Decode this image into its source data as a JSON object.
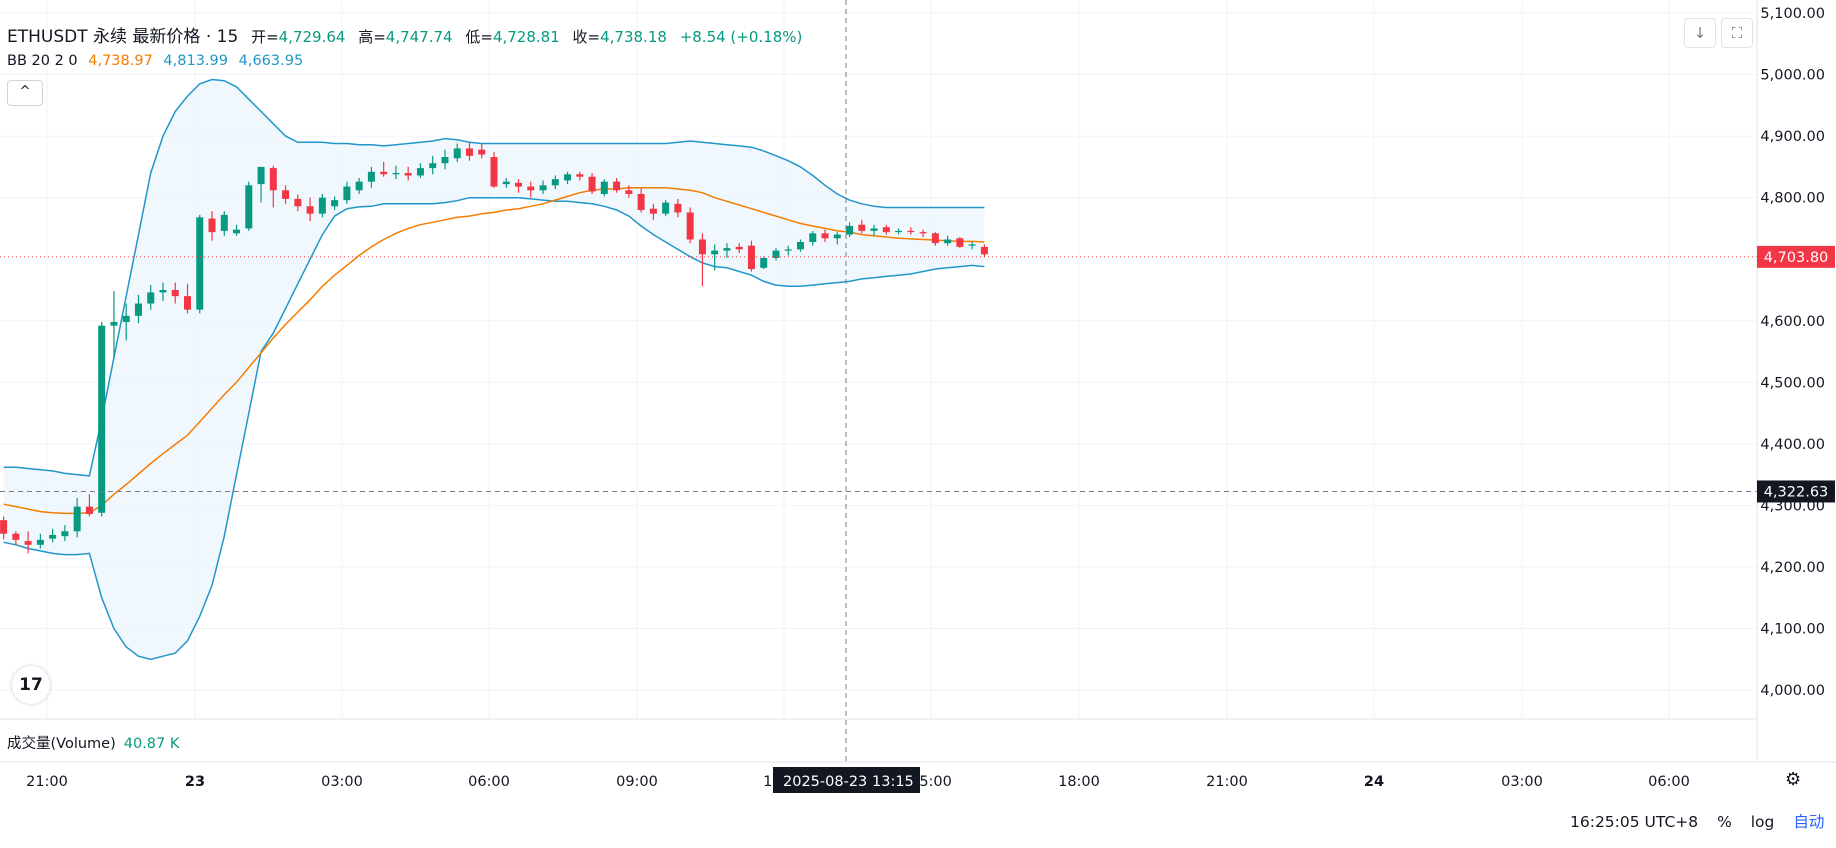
{
  "header": {
    "symbol": "ETHUSDT 永续 最新价格 · 15",
    "open_label": "开=",
    "open": "4,729.64",
    "high_label": "高=",
    "high": "4,747.74",
    "low_label": "低=",
    "low": "4,728.81",
    "close_label": "收=",
    "close": "4,738.18",
    "change": "+8.54 (+0.18%)"
  },
  "bb_legend": {
    "name": "BB 20 2 0",
    "middle": "4,738.97",
    "upper": "4,813.99",
    "lower": "4,663.95"
  },
  "volume_legend": {
    "label": "成交量(Volume)",
    "value": "40.87 K"
  },
  "crosshair": {
    "date": "2025-08-23",
    "time": "13:15",
    "price": "4,322.63"
  },
  "last_price": "4,703.80",
  "bottom_bar": {
    "clock": "16:25:05 UTC+8",
    "percent": "%",
    "log": "log",
    "auto": "自动"
  },
  "logo_text": "17",
  "icons": [
    "collapse-icon",
    "download-icon",
    "fullscreen-icon",
    "settings-icon",
    "tradingview-logo-icon"
  ],
  "colors": {
    "up": "#089981",
    "down": "#f23645",
    "bb_middle": "#f57c00",
    "bb_band": "#2196c8",
    "band_fill": "#e3f2fd"
  },
  "chart_data": {
    "type": "candlestick",
    "title": "ETHUSDT 永续 最新价格 · 15",
    "ylim": [
      3900,
      5120
    ],
    "y_ticks": [
      "5,100.00",
      "5,000.00",
      "4,900.00",
      "4,800.00",
      "4,700.00",
      "4,600.00",
      "4,500.00",
      "4,400.00",
      "4,300.00",
      "4,200.00",
      "4,100.00",
      "4,000.00"
    ],
    "x_ticks": [
      "21:00",
      "23",
      "03:00",
      "06:00",
      "09:00",
      "12:00",
      "15:00",
      "18:00",
      "21:00",
      "24",
      "03:00",
      "06:00"
    ],
    "grid": true,
    "candles": [
      [
        4276,
        4282,
        4245,
        4254
      ],
      [
        4254,
        4258,
        4235,
        4244
      ],
      [
        4242,
        4258,
        4222,
        4236
      ],
      [
        4236,
        4254,
        4230,
        4244
      ],
      [
        4246,
        4262,
        4240,
        4252
      ],
      [
        4250,
        4268,
        4242,
        4258
      ],
      [
        4258,
        4312,
        4248,
        4298
      ],
      [
        4298,
        4318,
        4282,
        4286
      ],
      [
        4288,
        4598,
        4282,
        4592
      ],
      [
        4592,
        4648,
        4538,
        4598
      ],
      [
        4598,
        4628,
        4568,
        4608
      ],
      [
        4608,
        4642,
        4596,
        4628
      ],
      [
        4628,
        4658,
        4618,
        4646
      ],
      [
        4646,
        4662,
        4632,
        4650
      ],
      [
        4650,
        4662,
        4628,
        4640
      ],
      [
        4640,
        4660,
        4612,
        4618
      ],
      [
        4618,
        4772,
        4612,
        4768
      ],
      [
        4766,
        4778,
        4730,
        4744
      ],
      [
        4746,
        4778,
        4738,
        4772
      ],
      [
        4742,
        4756,
        4738,
        4748
      ],
      [
        4750,
        4826,
        4746,
        4820
      ],
      [
        4822,
        4850,
        4792,
        4850
      ],
      [
        4848,
        4852,
        4784,
        4812
      ],
      [
        4812,
        4820,
        4790,
        4798
      ],
      [
        4798,
        4805,
        4778,
        4786
      ],
      [
        4786,
        4800,
        4762,
        4774
      ],
      [
        4774,
        4806,
        4768,
        4800
      ],
      [
        4786,
        4802,
        4780,
        4796
      ],
      [
        4796,
        4826,
        4790,
        4818
      ],
      [
        4812,
        4832,
        4806,
        4826
      ],
      [
        4826,
        4850,
        4816,
        4842
      ],
      [
        4842,
        4858,
        4834,
        4838
      ],
      [
        4838,
        4852,
        4830,
        4840
      ],
      [
        4840,
        4850,
        4828,
        4836
      ],
      [
        4836,
        4856,
        4832,
        4848
      ],
      [
        4848,
        4868,
        4838,
        4856
      ],
      [
        4856,
        4878,
        4846,
        4866
      ],
      [
        4864,
        4888,
        4858,
        4880
      ],
      [
        4880,
        4890,
        4860,
        4868
      ],
      [
        4878,
        4888,
        4864,
        4870
      ],
      [
        4866,
        4874,
        4816,
        4818
      ],
      [
        4822,
        4832,
        4816,
        4826
      ],
      [
        4824,
        4830,
        4808,
        4818
      ],
      [
        4818,
        4826,
        4800,
        4812
      ],
      [
        4812,
        4828,
        4806,
        4820
      ],
      [
        4820,
        4836,
        4814,
        4830
      ],
      [
        4828,
        4842,
        4822,
        4838
      ],
      [
        4838,
        4842,
        4828,
        4834
      ],
      [
        4834,
        4840,
        4806,
        4810
      ],
      [
        4806,
        4830,
        4802,
        4826
      ],
      [
        4826,
        4832,
        4808,
        4812
      ],
      [
        4812,
        4820,
        4800,
        4806
      ],
      [
        4806,
        4815,
        4776,
        4780
      ],
      [
        4782,
        4790,
        4764,
        4774
      ],
      [
        4774,
        4796,
        4770,
        4792
      ],
      [
        4790,
        4798,
        4768,
        4776
      ],
      [
        4776,
        4784,
        4726,
        4732
      ],
      [
        4732,
        4742,
        4656,
        4708
      ],
      [
        4708,
        4724,
        4682,
        4714
      ],
      [
        4714,
        4726,
        4702,
        4718
      ],
      [
        4720,
        4726,
        4710,
        4716
      ],
      [
        4722,
        4730,
        4680,
        4684
      ],
      [
        4686,
        4704,
        4684,
        4702
      ],
      [
        4702,
        4718,
        4698,
        4714
      ],
      [
        4714,
        4722,
        4706,
        4716
      ],
      [
        4716,
        4732,
        4712,
        4728
      ],
      [
        4728,
        4746,
        4722,
        4742
      ],
      [
        4742,
        4748,
        4728,
        4734
      ],
      [
        4734,
        4744,
        4724,
        4740
      ],
      [
        4740,
        4760,
        4736,
        4754
      ],
      [
        4756,
        4764,
        4742,
        4746
      ],
      [
        4746,
        4756,
        4738,
        4750
      ],
      [
        4752,
        4756,
        4740,
        4744
      ],
      [
        4744,
        4750,
        4740,
        4746
      ],
      [
        4746,
        4752,
        4740,
        4744
      ],
      [
        4744,
        4748,
        4736,
        4742
      ],
      [
        4742,
        4744,
        4722,
        4726
      ],
      [
        4726,
        4738,
        4722,
        4732
      ],
      [
        4734,
        4736,
        4718,
        4720
      ],
      [
        4722,
        4728,
        4716,
        4724
      ],
      [
        4720,
        4724,
        4704,
        4708
      ]
    ],
    "bb_middle": [
      4302,
      4298,
      4294,
      4290,
      4288,
      4287,
      4287,
      4288,
      4300,
      4318,
      4334,
      4351,
      4368,
      4384,
      4399,
      4414,
      4436,
      4458,
      4480,
      4500,
      4524,
      4548,
      4572,
      4594,
      4614,
      4634,
      4656,
      4674,
      4690,
      4706,
      4720,
      4732,
      4742,
      4750,
      4756,
      4760,
      4764,
      4768,
      4770,
      4774,
      4776,
      4780,
      4782,
      4786,
      4790,
      4796,
      4802,
      4808,
      4812,
      4814,
      4814,
      4816,
      4816,
      4816,
      4816,
      4814,
      4812,
      4808,
      4800,
      4794,
      4788,
      4782,
      4776,
      4770,
      4764,
      4758,
      4754,
      4750,
      4746,
      4744,
      4740,
      4738,
      4736,
      4734,
      4733,
      4732,
      4731,
      4730,
      4729,
      4729,
      4728
    ],
    "bb_upper": [
      4362,
      4362,
      4360,
      4358,
      4356,
      4352,
      4350,
      4348,
      4440,
      4540,
      4640,
      4740,
      4840,
      4900,
      4940,
      4965,
      4985,
      4992,
      4990,
      4980,
      4960,
      4940,
      4920,
      4900,
      4890,
      4890,
      4890,
      4888,
      4888,
      4886,
      4886,
      4884,
      4886,
      4888,
      4890,
      4892,
      4896,
      4894,
      4890,
      4888,
      4888,
      4888,
      4888,
      4888,
      4888,
      4888,
      4888,
      4888,
      4888,
      4888,
      4888,
      4888,
      4888,
      4888,
      4888,
      4890,
      4892,
      4890,
      4888,
      4886,
      4884,
      4882,
      4876,
      4868,
      4860,
      4850,
      4836,
      4820,
      4806,
      4796,
      4790,
      4786,
      4784,
      4784,
      4784,
      4784,
      4784,
      4784,
      4784,
      4784,
      4784
    ],
    "bb_lower": [
      4240,
      4236,
      4230,
      4226,
      4222,
      4220,
      4220,
      4222,
      4150,
      4100,
      4070,
      4055,
      4050,
      4055,
      4060,
      4080,
      4120,
      4170,
      4250,
      4350,
      4450,
      4550,
      4580,
      4620,
      4660,
      4700,
      4740,
      4770,
      4782,
      4785,
      4786,
      4790,
      4790,
      4790,
      4790,
      4790,
      4792,
      4795,
      4800,
      4800,
      4800,
      4800,
      4800,
      4798,
      4796,
      4794,
      4794,
      4792,
      4790,
      4786,
      4780,
      4770,
      4754,
      4740,
      4728,
      4716,
      4704,
      4694,
      4688,
      4686,
      4680,
      4674,
      4664,
      4658,
      4656,
      4656,
      4658,
      4660,
      4662,
      4664,
      4668,
      4670,
      4672,
      4674,
      4676,
      4680,
      4684,
      4686,
      4688,
      4690,
      4688
    ]
  }
}
